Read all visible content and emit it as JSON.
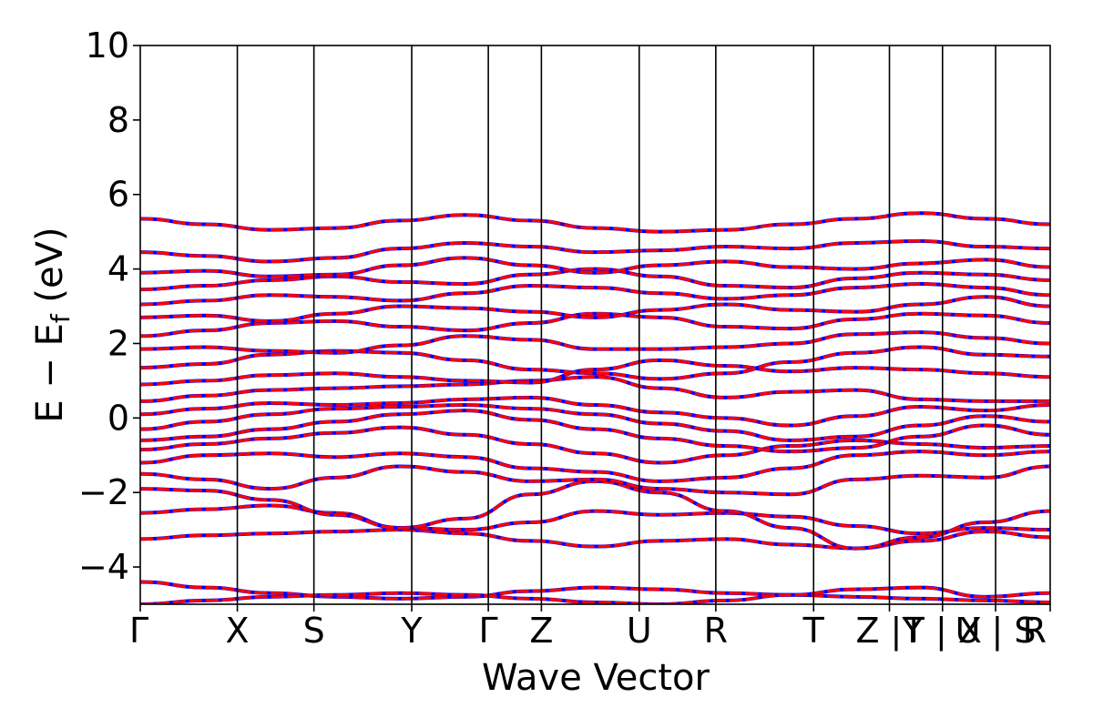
{
  "chart_data": {
    "type": "line",
    "xlabel": "Wave Vector",
    "ylabel_parts": [
      "E − E",
      "f",
      " (eV)"
    ],
    "ylim": [
      -5,
      10
    ],
    "yticks": [
      "−4",
      "−2",
      "0",
      "2",
      "4",
      "6",
      "8",
      "10"
    ],
    "ytick_values": [
      -4,
      -2,
      0,
      2,
      4,
      6,
      8,
      10
    ],
    "xlim": [
      0,
      12
    ],
    "high_symmetry_labels": [
      "Γ",
      "X",
      "S",
      "Y",
      "Γ",
      "Z",
      "U",
      "R",
      "T",
      "Z |Y",
      "T | X",
      "U | S",
      "R"
    ],
    "high_symmetry_positions": [
      0,
      1.28,
      2.29,
      3.58,
      4.59,
      5.29,
      6.58,
      7.59,
      8.88,
      9.88,
      10.58,
      11.28,
      12.0
    ],
    "segment_breaks": [
      9.88,
      10.58,
      11.28
    ],
    "series_colors": {
      "dft": "#0000ff",
      "fit": "#ff0000"
    },
    "bands": [
      [
        -4.4,
        -4.55,
        -4.7,
        -4.8,
        -4.85,
        -4.8,
        -4.65,
        -4.55,
        -4.6,
        -4.7,
        -4.75,
        -4.8,
        -4.85,
        -4.9,
        -4.95
      ],
      [
        -5.0,
        -4.9,
        -4.8,
        -4.75,
        -4.7,
        -4.75,
        -4.85,
        -4.95,
        -5.0,
        -4.9,
        -4.75,
        -4.6,
        -4.55,
        -4.8,
        -4.7
      ],
      [
        -3.25,
        -3.15,
        -3.1,
        -3.05,
        -3.0,
        -3.1,
        -3.3,
        -3.45,
        -3.3,
        -3.25,
        -3.4,
        -3.5,
        -3.3,
        -3.05,
        -3.2
      ],
      [
        -2.55,
        -2.45,
        -2.35,
        -2.55,
        -2.95,
        -3.0,
        -2.8,
        -2.5,
        -2.6,
        -2.55,
        -2.65,
        -2.9,
        -3.1,
        -2.95,
        -3.0
      ],
      [
        -1.9,
        -1.95,
        -2.2,
        -2.6,
        -2.95,
        -2.7,
        -2.05,
        -1.7,
        -2.0,
        -2.5,
        -2.95,
        -3.5,
        -3.2,
        -2.8,
        -2.5
      ],
      [
        -1.5,
        -1.65,
        -1.9,
        -1.6,
        -1.3,
        -1.45,
        -1.7,
        -1.65,
        -1.9,
        -2.0,
        -2.05,
        -1.65,
        -1.55,
        -1.6,
        -1.3
      ],
      [
        -1.2,
        -1.0,
        -0.95,
        -1.05,
        -0.95,
        -1.05,
        -1.35,
        -1.45,
        -1.7,
        -1.6,
        -1.35,
        -1.0,
        -0.9,
        -1.0,
        -0.9
      ],
      [
        -0.85,
        -0.7,
        -0.55,
        -0.4,
        -0.25,
        -0.45,
        -0.7,
        -0.95,
        -1.2,
        -1.0,
        -0.75,
        -0.6,
        -0.7,
        -0.8,
        -0.75
      ],
      [
        -0.6,
        -0.5,
        -0.3,
        -0.1,
        0.1,
        0.2,
        -0.05,
        -0.3,
        -0.55,
        -0.75,
        -0.9,
        -0.8,
        -0.5,
        -0.2,
        -0.45
      ],
      [
        -0.3,
        -0.1,
        0.1,
        0.25,
        0.3,
        0.35,
        0.25,
        0.1,
        -0.15,
        -0.35,
        -0.6,
        -0.5,
        -0.2,
        0.05,
        -0.1
      ],
      [
        0.1,
        0.25,
        0.4,
        0.35,
        0.4,
        0.5,
        0.55,
        0.35,
        0.15,
        0.0,
        -0.2,
        0.05,
        0.3,
        0.2,
        0.35
      ],
      [
        0.45,
        0.6,
        0.75,
        0.8,
        0.85,
        0.9,
        1.0,
        1.1,
        0.8,
        0.55,
        0.7,
        0.75,
        0.5,
        0.45,
        0.45
      ],
      [
        0.9,
        1.0,
        1.15,
        1.2,
        1.1,
        1.0,
        0.95,
        1.3,
        1.55,
        1.4,
        1.25,
        1.35,
        1.3,
        1.2,
        1.1
      ],
      [
        1.35,
        1.45,
        1.7,
        1.8,
        1.75,
        1.55,
        1.3,
        1.2,
        1.05,
        1.2,
        1.5,
        1.75,
        1.9,
        1.7,
        1.65
      ],
      [
        1.85,
        1.9,
        1.8,
        1.75,
        1.95,
        2.2,
        2.1,
        1.85,
        1.85,
        1.9,
        2.0,
        2.25,
        2.3,
        2.15,
        2.0
      ],
      [
        2.2,
        2.35,
        2.55,
        2.6,
        2.45,
        2.35,
        2.55,
        2.8,
        2.7,
        2.45,
        2.4,
        2.65,
        2.8,
        2.75,
        2.55
      ],
      [
        2.7,
        2.75,
        2.6,
        2.8,
        3.0,
        2.95,
        2.85,
        2.7,
        2.9,
        3.05,
        2.9,
        2.85,
        3.05,
        3.25,
        3.0
      ],
      [
        3.05,
        3.15,
        3.3,
        3.25,
        3.15,
        3.35,
        3.55,
        3.5,
        3.35,
        3.2,
        3.3,
        3.5,
        3.6,
        3.5,
        3.3
      ],
      [
        3.45,
        3.55,
        3.7,
        3.8,
        3.65,
        3.6,
        3.85,
        4.0,
        3.8,
        3.55,
        3.5,
        3.75,
        3.9,
        3.85,
        3.7
      ],
      [
        3.9,
        3.95,
        3.8,
        3.85,
        4.1,
        4.3,
        4.1,
        3.9,
        4.1,
        4.2,
        4.05,
        4.0,
        4.15,
        4.25,
        4.05
      ],
      [
        4.45,
        4.35,
        4.2,
        4.3,
        4.55,
        4.7,
        4.6,
        4.45,
        4.5,
        4.6,
        4.55,
        4.7,
        4.75,
        4.6,
        4.55
      ],
      [
        5.35,
        5.2,
        5.05,
        5.1,
        5.3,
        5.45,
        5.3,
        5.1,
        5.0,
        5.05,
        5.2,
        5.35,
        5.5,
        5.35,
        5.2
      ]
    ]
  }
}
